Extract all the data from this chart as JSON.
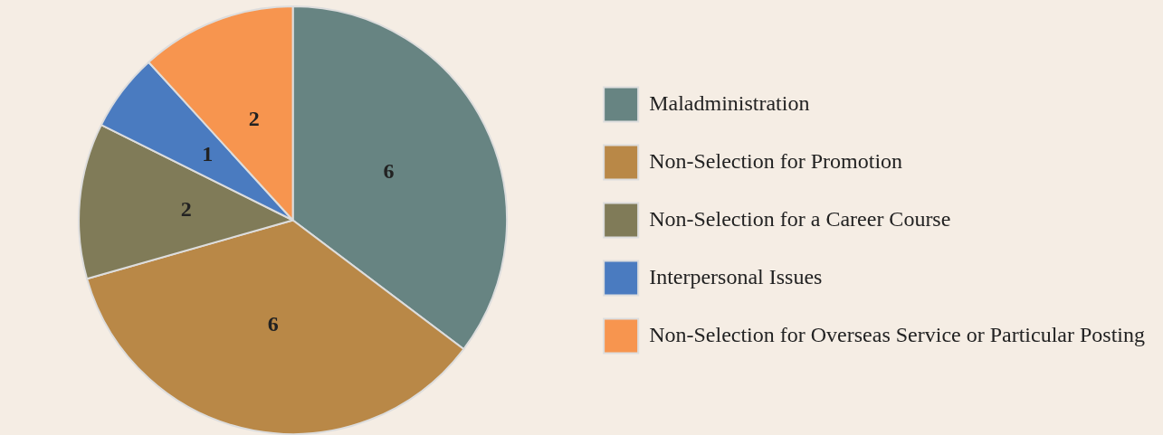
{
  "chart_data": {
    "type": "pie",
    "categories": [
      "Maladministration",
      "Non-Selection for Promotion",
      "Non-Selection for a Career Course",
      "Interpersonal Issues",
      "Non-Selection for Overseas Service or Particular Posting"
    ],
    "values": [
      6,
      6,
      2,
      1,
      2
    ],
    "colors": [
      "#678482",
      "#b98847",
      "#807b58",
      "#4a7bc0",
      "#f7954f"
    ],
    "data_labels": true,
    "legend": "right"
  }
}
